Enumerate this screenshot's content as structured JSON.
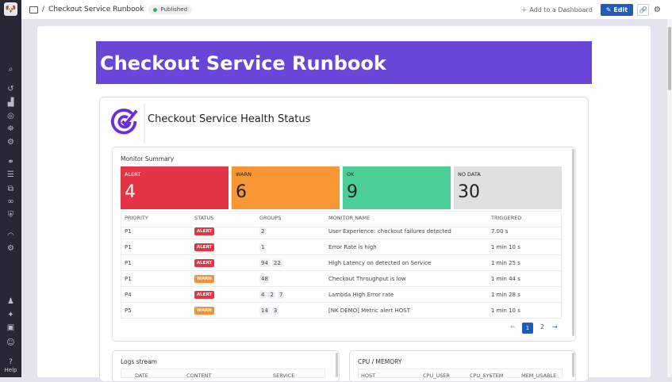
{
  "sidebar": {
    "icons": [
      "dog-logo-icon",
      "search-icon",
      "history-icon",
      "dashboard-icon",
      "watchdog-icon",
      "binoculars-icon",
      "integrations-icon",
      "service-map-icon",
      "logs-icon",
      "apm-icon",
      "network-icon",
      "security-icon",
      "performance-icon",
      "synthetics-icon",
      "team-icon",
      "sparkle-icon",
      "chat-icon",
      "avatar-icon"
    ],
    "help_label": "Help"
  },
  "topbar": {
    "breadcrumb_sep": "/",
    "title": "Checkout Service Runbook",
    "status": "Published",
    "add_dashboard": "Add to a Dashboard",
    "edit": "Edit"
  },
  "banner": {
    "title": "Checkout Service Runbook"
  },
  "health": {
    "title": "Checkout Service Health Status"
  },
  "monitor": {
    "title": "Monitor Summary",
    "summary": [
      {
        "label": "ALERT",
        "value": "4",
        "color": "#e33545"
      },
      {
        "label": "WARN",
        "value": "6",
        "color": "#fa9735"
      },
      {
        "label": "OK",
        "value": "9",
        "color": "#4ccf96"
      },
      {
        "label": "NO DATA",
        "value": "30",
        "color": "#e0e0e0"
      }
    ],
    "columns": [
      "PRIORITY",
      "STATUS",
      "GROUPS",
      "MONITOR NAME",
      "TRIGGERED"
    ],
    "rows": [
      {
        "priority": "P1",
        "status": "ALERT",
        "groups": [
          "2"
        ],
        "name": "User Experience: checkout failures detected",
        "triggered": "7.00 s"
      },
      {
        "priority": "P1",
        "status": "ALERT",
        "groups": [
          "1"
        ],
        "name": "Error Rate is high",
        "triggered": "1 min 10 s"
      },
      {
        "priority": "P1",
        "status": "ALERT",
        "groups": [
          "94",
          "22"
        ],
        "name": "High Latency on detected on Service",
        "triggered": "1 min 25 s"
      },
      {
        "priority": "P1",
        "status": "WARN",
        "groups": [
          "48"
        ],
        "name": "Checkout Throughput is low",
        "triggered": "1 min 44 s"
      },
      {
        "priority": "P4",
        "status": "ALERT",
        "groups": [
          "4",
          "2",
          "7"
        ],
        "name": "Lambda High Error rate",
        "triggered": "1 min 28 s"
      },
      {
        "priority": "P5",
        "status": "WARN",
        "groups": [
          "14",
          "3"
        ],
        "name": "[NK DEMO] Metric alert HOST",
        "triggered": "1 min 10 s"
      }
    ],
    "pagination": {
      "prev": "←",
      "pages": [
        "1",
        "2"
      ],
      "current": "1",
      "next": "→"
    }
  },
  "logs": {
    "title": "Logs stream",
    "columns": [
      "DATE",
      "CONTENT",
      "SERVICE"
    ]
  },
  "cpu": {
    "title": "CPU / MEMORY",
    "columns": [
      "HOST",
      "CPU_USER",
      "CPU_SYSTEM",
      "MEM_USABLE"
    ]
  },
  "colors": {
    "alert": "#e33545",
    "warn": "#f0923a",
    "accent": "#6a46d8",
    "primary": "#1f5bb8"
  }
}
